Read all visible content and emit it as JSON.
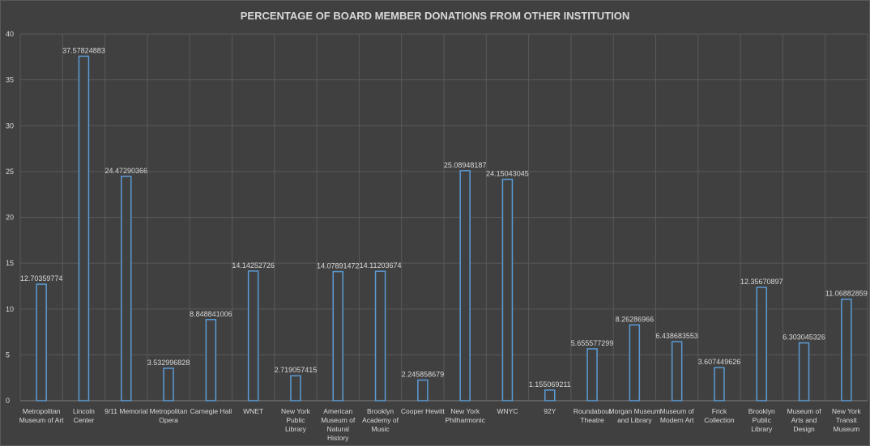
{
  "chart_data": {
    "type": "bar",
    "title": "PERCENTAGE OF BOARD MEMBER DONATIONS FROM OTHER INSTITUTION",
    "xlabel": "",
    "ylabel": "",
    "ylim": [
      0,
      40
    ],
    "yticks": [
      0,
      5,
      10,
      15,
      20,
      25,
      30,
      35,
      40
    ],
    "grid": true,
    "legend": "none",
    "categories": [
      "Metropolitan Museum of Art",
      "Lincoln Center",
      "9/11 Memorial",
      "Metropolitan Opera",
      "Carnegie Hall",
      "WNET",
      "New York Public Library",
      "American Museum of Natural History",
      "Brooklyn Academy of Music",
      "Cooper Hewitt",
      "New York Philharmonic",
      "WNYC",
      "92Y",
      "Roundabout Theatre",
      "Morgan Museum and Library",
      "Museum of Modern Art",
      "Frick Collection",
      "Brooklyn Public Library",
      "Museum of Arts and Design",
      "New York Transit Museum"
    ],
    "values": [
      12.70359774,
      37.57824883,
      24.47290366,
      3.532996828,
      8.848841006,
      14.14252726,
      2.719057415,
      14.07891472,
      14.11203674,
      2.245858679,
      25.08948187,
      24.15043045,
      1.155069211,
      5.655577299,
      8.26286966,
      6.438683553,
      3.607449626,
      12.35670897,
      6.303045326,
      11.06882859
    ],
    "data_labels": [
      "12.70359774",
      "37.57824883",
      "24.47290366",
      "3.532996828",
      "8.848841006",
      "14.14252726",
      "2.719057415",
      "14.07891472",
      "14.11203674",
      "2.245858679",
      "25.08948187",
      "24.15043045",
      "1.155069211",
      "5.655577299",
      "8.26286966",
      "6.438683553",
      "3.607449626",
      "12.35670897",
      "6.303045326",
      "11.06882859"
    ],
    "colors": {
      "background": "#404040",
      "bar_outline": "#5b9bd5",
      "bar_fill": "#404040",
      "text": "#d9d9d9",
      "gridline": "#595959"
    }
  }
}
